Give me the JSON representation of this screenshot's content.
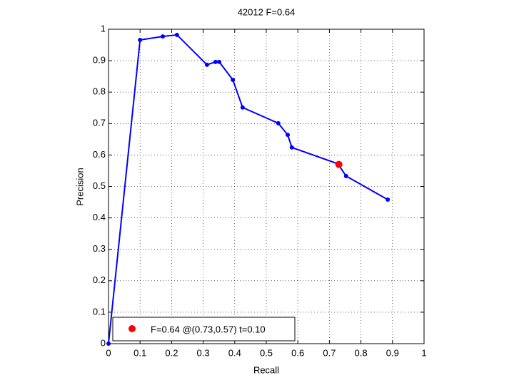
{
  "chart_data": {
    "type": "line",
    "title": "42012 F=0.64",
    "xlabel": "Recall",
    "ylabel": "Precision",
    "xlim": [
      0,
      1
    ],
    "ylim": [
      0,
      1
    ],
    "xticks": [
      0,
      0.1,
      0.2,
      0.3,
      0.4,
      0.5,
      0.6,
      0.7,
      0.8,
      0.9,
      1
    ],
    "yticks": [
      0,
      0.1,
      0.2,
      0.3,
      0.4,
      0.5,
      0.6,
      0.7,
      0.8,
      0.9,
      1
    ],
    "grid": true,
    "curve": {
      "color": "#0000ff",
      "x": [
        0,
        0.1,
        0.172,
        0.217,
        0.312,
        0.339,
        0.351,
        0.394,
        0.425,
        0.538,
        0.568,
        0.581,
        0.727,
        0.753,
        0.885
      ],
      "y": [
        0,
        0.966,
        0.977,
        0.982,
        0.887,
        0.896,
        0.896,
        0.839,
        0.751,
        0.701,
        0.664,
        0.624,
        0.572,
        0.533,
        0.458
      ]
    },
    "best": {
      "name": "F=0.64 @(0.73,0.57) t=0.10",
      "color": "#ff0000",
      "x": 0.73,
      "y": 0.57
    },
    "legend": "lower left"
  }
}
